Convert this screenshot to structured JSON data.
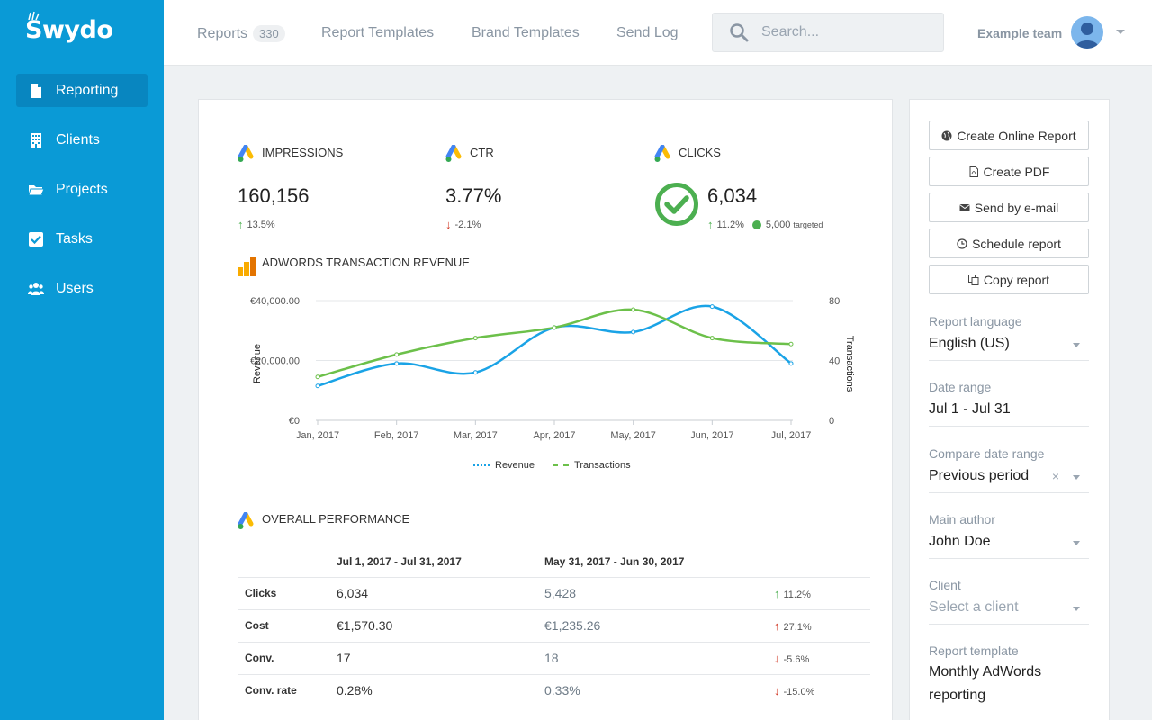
{
  "brand": {
    "name": "Swydo"
  },
  "sidebar": {
    "items": [
      {
        "label": "Reporting",
        "icon": "file-icon"
      },
      {
        "label": "Clients",
        "icon": "building-icon"
      },
      {
        "label": "Projects",
        "icon": "folder-icon"
      },
      {
        "label": "Tasks",
        "icon": "checkbox-icon"
      },
      {
        "label": "Users",
        "icon": "users-icon"
      }
    ]
  },
  "topnav": {
    "reports_label": "Reports",
    "reports_count": "330",
    "report_templates": "Report Templates",
    "brand_templates": "Brand Templates",
    "send_log": "Send Log",
    "search_placeholder": "Search...",
    "team": "Example team"
  },
  "kpis": [
    {
      "title": "IMPRESSIONS",
      "value": "160,156",
      "change": "13.5%",
      "direction": "up"
    },
    {
      "title": "CTR",
      "value": "3.77%",
      "change": "-2.1%",
      "direction": "down"
    },
    {
      "title": "CLICKS",
      "value": "6,034",
      "change": "11.2%",
      "direction": "up",
      "target": "5,000",
      "target_label": "targeted"
    }
  ],
  "revenue_section": {
    "title": "ADWORDS TRANSACTION REVENUE"
  },
  "chart_data": {
    "type": "line",
    "categories": [
      "Jan, 2017",
      "Feb, 2017",
      "Mar, 2017",
      "Apr, 2017",
      "May, 2017",
      "Jun, 2017",
      "Jul, 2017"
    ],
    "series": [
      {
        "name": "Revenue",
        "axis": "left",
        "color": "#1aa3e6",
        "values": [
          11500,
          19000,
          16000,
          31000,
          29500,
          38000,
          19000
        ]
      },
      {
        "name": "Transactions",
        "axis": "right",
        "color": "#6cc04a",
        "values": [
          29,
          44,
          55,
          62,
          74,
          55,
          51
        ]
      }
    ],
    "ylabel": "Revenue",
    "ylabel_right": "Transactions",
    "y_ticks": [
      "€0",
      "€20,000.00",
      "€40,000.00"
    ],
    "y_right_ticks": [
      "0",
      "40",
      "80"
    ],
    "ylim": [
      0,
      40000
    ],
    "ylim_right": [
      0,
      80
    ],
    "legend": "bottom",
    "grid": true
  },
  "performance": {
    "title": "OVERALL PERFORMANCE",
    "col_current": "Jul 1, 2017 - Jul 31, 2017",
    "col_previous": "May 31, 2017 - Jun 30, 2017",
    "rows": [
      {
        "metric": "Clicks",
        "current": "6,034",
        "previous": "5,428",
        "change": "11.2%",
        "direction": "up",
        "color": "#4caf50"
      },
      {
        "metric": "Cost",
        "current": "€1,570.30",
        "previous": "€1,235.26",
        "change": "27.1%",
        "direction": "up",
        "color": "#d0321e"
      },
      {
        "metric": "Conv.",
        "current": "17",
        "previous": "18",
        "change": "-5.6%",
        "direction": "down",
        "color": "#d0321e"
      },
      {
        "metric": "Conv. rate",
        "current": "0.28%",
        "previous": "0.33%",
        "change": "-15.0%",
        "direction": "down",
        "color": "#d0321e"
      }
    ]
  },
  "panel": {
    "buttons": [
      {
        "label": "Create Online Report",
        "icon": "globe-icon"
      },
      {
        "label": "Create PDF",
        "icon": "pdf-icon"
      },
      {
        "label": "Send by e-mail",
        "icon": "envelope-icon"
      },
      {
        "label": "Schedule report",
        "icon": "clock-icon"
      },
      {
        "label": "Copy report",
        "icon": "copy-icon"
      }
    ],
    "fields": {
      "language_label": "Report language",
      "language_value": "English (US)",
      "date_label": "Date range",
      "date_value": "Jul 1 - Jul 31",
      "compare_label": "Compare date range",
      "compare_value": "Previous period",
      "author_label": "Main author",
      "author_value": "John Doe",
      "client_label": "Client",
      "client_placeholder": "Select a client",
      "template_label": "Report template",
      "template_value": "Monthly AdWords reporting"
    }
  }
}
